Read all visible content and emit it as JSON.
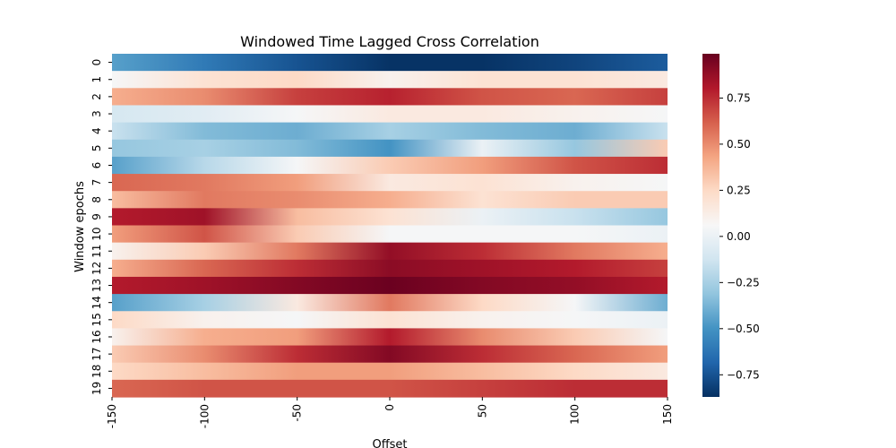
{
  "chart_data": {
    "type": "heatmap",
    "title": "Windowed Time Lagged Cross Correlation",
    "xlabel": "Offset",
    "ylabel": "Window epochs",
    "xlim": [
      -150,
      150
    ],
    "x_ticks": [
      -150,
      -100,
      -50,
      0,
      50,
      100,
      150
    ],
    "x_tick_labels": [
      "-150",
      "-100",
      "-50",
      "0",
      "50",
      "100",
      "150"
    ],
    "y_categories": [
      "0",
      "1",
      "2",
      "3",
      "4",
      "5",
      "6",
      "7",
      "8",
      "9",
      "10",
      "11",
      "12",
      "13",
      "14",
      "15",
      "16",
      "17",
      "18",
      "19"
    ],
    "colorbar": {
      "colormap": "RdBu_r",
      "vmin": -0.87,
      "vmax": 0.99,
      "ticks": [
        0.75,
        0.5,
        0.25,
        0.0,
        -0.25,
        -0.5,
        -0.75
      ],
      "tick_labels": [
        "0.75",
        "0.50",
        "0.25",
        "0.00",
        "−0.25",
        "−0.50",
        "−0.75"
      ]
    },
    "profile_offsets": [
      -150,
      -100,
      -50,
      0,
      50,
      100,
      150
    ],
    "rows": [
      [
        -0.45,
        -0.6,
        -0.75,
        -0.86,
        -0.86,
        -0.8,
        -0.72
      ],
      [
        0.05,
        0.2,
        0.25,
        0.1,
        0.2,
        0.2,
        0.15
      ],
      [
        0.4,
        0.5,
        0.7,
        0.78,
        0.65,
        0.6,
        0.7
      ],
      [
        -0.1,
        -0.05,
        0.05,
        0.15,
        0.15,
        0.1,
        0.05
      ],
      [
        -0.15,
        -0.35,
        -0.4,
        -0.25,
        -0.35,
        -0.4,
        -0.15
      ],
      [
        -0.3,
        -0.25,
        -0.35,
        -0.5,
        0.0,
        -0.3,
        0.3
      ],
      [
        -0.45,
        -0.2,
        0.05,
        0.3,
        0.45,
        0.65,
        0.75
      ],
      [
        0.6,
        0.55,
        0.45,
        0.15,
        0.2,
        0.1,
        0.05
      ],
      [
        0.35,
        0.55,
        0.5,
        0.4,
        0.2,
        0.3,
        0.3
      ],
      [
        0.8,
        0.85,
        0.35,
        0.2,
        0.0,
        -0.15,
        -0.3
      ],
      [
        0.45,
        0.65,
        0.3,
        0.05,
        0.05,
        0.05,
        0.0
      ],
      [
        0.1,
        0.3,
        0.55,
        0.88,
        0.75,
        0.55,
        0.4
      ],
      [
        0.4,
        0.6,
        0.75,
        0.9,
        0.85,
        0.8,
        0.7
      ],
      [
        0.8,
        0.85,
        0.92,
        0.98,
        0.92,
        0.88,
        0.8
      ],
      [
        -0.45,
        -0.25,
        0.15,
        0.55,
        0.25,
        0.05,
        -0.4
      ],
      [
        0.25,
        0.1,
        0.05,
        0.2,
        0.1,
        0.05,
        0.0
      ],
      [
        0.1,
        0.4,
        0.45,
        0.8,
        0.5,
        0.3,
        0.05
      ],
      [
        0.3,
        0.5,
        0.75,
        0.92,
        0.75,
        0.6,
        0.45
      ],
      [
        0.25,
        0.35,
        0.45,
        0.45,
        0.35,
        0.25,
        0.15
      ],
      [
        0.6,
        0.65,
        0.65,
        0.65,
        0.7,
        0.75,
        0.75
      ]
    ],
    "grid": false,
    "legend": "none"
  }
}
